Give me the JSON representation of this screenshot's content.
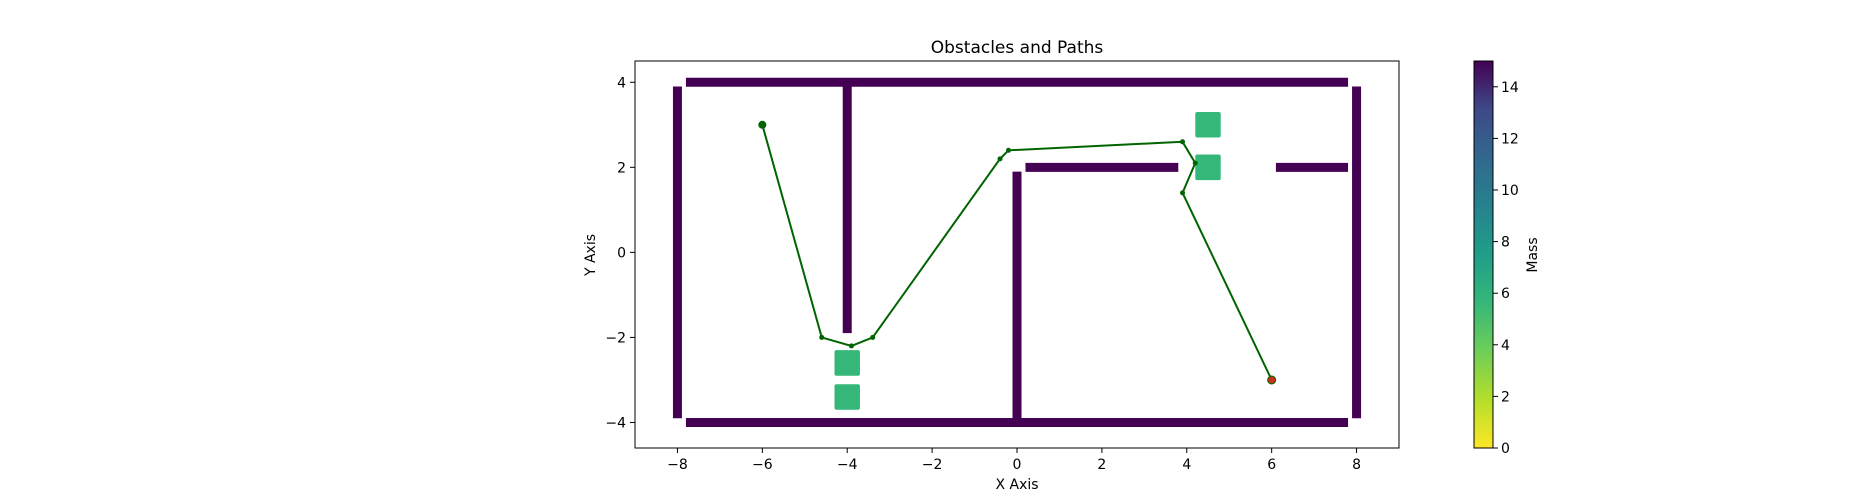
{
  "chart_data": {
    "type": "scatter",
    "title": "Obstacles and Paths",
    "xlabel": "X Axis",
    "ylabel": "Y Axis",
    "xlim": [
      -9.0,
      9.0
    ],
    "ylim": [
      -4.6,
      4.5
    ],
    "xticks": [
      -8,
      -6,
      -4,
      -2,
      0,
      2,
      4,
      6,
      8
    ],
    "yticks": [
      -4,
      -2,
      0,
      2,
      4
    ],
    "xtick_labels": [
      "−8",
      "−6",
      "−4",
      "−2",
      "0",
      "2",
      "4",
      "6",
      "8"
    ],
    "ytick_labels": [
      "−4",
      "−2",
      "0",
      "2",
      "4"
    ],
    "grid": false,
    "colorbar": {
      "label": "Mass",
      "colormap": "viridis_r",
      "range": [
        0,
        15
      ],
      "ticks": [
        0,
        2,
        4,
        6,
        8,
        10,
        12,
        14
      ],
      "tick_labels": [
        "0",
        "2",
        "4",
        "6",
        "8",
        "10",
        "12",
        "14"
      ]
    },
    "walls": {
      "color": "#440154",
      "mass": 15,
      "segments": [
        {
          "x0": -7.8,
          "y0": 4.0,
          "x1": 7.8,
          "y1": 4.0
        },
        {
          "x0": -7.8,
          "y0": -4.0,
          "x1": 7.8,
          "y1": -4.0
        },
        {
          "x0": -8.0,
          "y0": -3.9,
          "x1": -8.0,
          "y1": 3.9
        },
        {
          "x0": 8.0,
          "y0": -3.9,
          "x1": 8.0,
          "y1": 3.9
        },
        {
          "x0": -4.0,
          "y0": -1.9,
          "x1": -4.0,
          "y1": 3.9
        },
        {
          "x0": 0.0,
          "y0": -3.9,
          "x1": 0.0,
          "y1": 1.9
        },
        {
          "x0": 0.2,
          "y0": 2.0,
          "x1": 3.8,
          "y1": 2.0
        },
        {
          "x0": 6.1,
          "y0": 2.0,
          "x1": 7.8,
          "y1": 2.0
        }
      ]
    },
    "movable_obstacles": {
      "color": "#35b779",
      "mass": 5,
      "centers": [
        {
          "x": -4.0,
          "y": -2.6
        },
        {
          "x": -4.0,
          "y": -3.4
        },
        {
          "x": 4.5,
          "y": 3.0
        },
        {
          "x": 4.5,
          "y": 2.0
        }
      ],
      "size": 0.6
    },
    "path": {
      "color": "#006400",
      "points": [
        {
          "x": -6.0,
          "y": 3.0
        },
        {
          "x": -4.6,
          "y": -2.0
        },
        {
          "x": -3.9,
          "y": -2.2
        },
        {
          "x": -3.4,
          "y": -2.0
        },
        {
          "x": -0.4,
          "y": 2.2
        },
        {
          "x": -0.2,
          "y": 2.4
        },
        {
          "x": 3.9,
          "y": 2.6
        },
        {
          "x": 4.2,
          "y": 2.1
        },
        {
          "x": 3.9,
          "y": 1.4
        },
        {
          "x": 6.0,
          "y": -3.0
        }
      ]
    },
    "start": {
      "x": -6.0,
      "y": 3.0,
      "color": "#006400"
    },
    "goal": {
      "x": 6.0,
      "y": -3.0,
      "color": "#c8321e"
    }
  }
}
